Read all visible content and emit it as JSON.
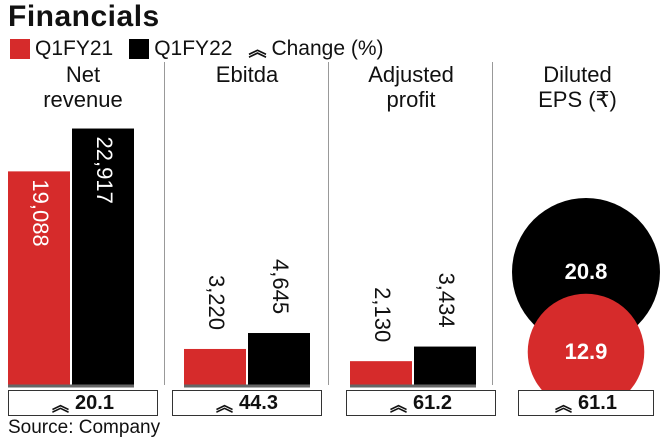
{
  "title": "Financials",
  "legend": {
    "series1": "Q1FY21",
    "series2": "Q1FY22",
    "change": "Change (%)"
  },
  "colors": {
    "q1fy21": "#d62b2b",
    "q1fy22": "#000000"
  },
  "source": "Source: Company",
  "chart_data": {
    "type": "bar",
    "series": [
      {
        "name": "Q1FY21"
      },
      {
        "name": "Q1FY22"
      }
    ],
    "panels": [
      {
        "title": "Net\nrevenue",
        "values": [
          19088
        ],
        "values2": [
          22917
        ],
        "labels": [
          "19,088",
          "22,917"
        ],
        "change": "20.1",
        "ymax": 23500
      },
      {
        "title": "Ebitda",
        "values": [
          3220
        ],
        "values2": [
          4645
        ],
        "labels": [
          "3,220",
          "4,645"
        ],
        "change": "44.3",
        "ymax": 23500
      },
      {
        "title": "Adjusted\nprofit",
        "values": [
          2130
        ],
        "values2": [
          3434
        ],
        "labels": [
          "2,130",
          "3,434"
        ],
        "change": "61.2",
        "ymax": 23500
      },
      {
        "title": "Diluted\nEPS (₹)",
        "values": [
          12.9
        ],
        "values2": [
          20.8
        ],
        "labels": [
          "12.9",
          "20.8"
        ],
        "change": "61.1",
        "type": "bubble"
      }
    ]
  }
}
